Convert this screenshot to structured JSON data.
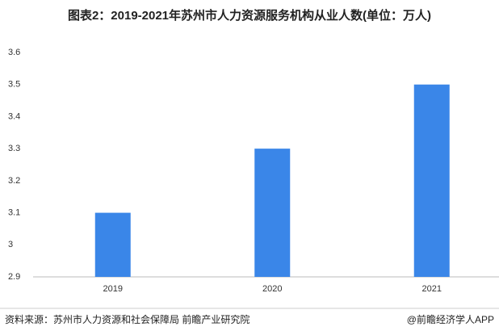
{
  "chart_data": {
    "type": "bar",
    "title": "图表2：2019-2021年苏州市人力资源服务机构从业人数(单位：万人)",
    "categories": [
      "2019",
      "2020",
      "2021"
    ],
    "values": [
      3.1,
      3.3,
      3.5
    ],
    "color": "#3a86e8",
    "ylim": [
      2.9,
      3.6
    ],
    "yticks": [
      2.9,
      3,
      3.1,
      3.2,
      3.3,
      3.4,
      3.5,
      3.6
    ],
    "grid": false,
    "source": "资料来源：苏州市人力资源和社会保障局 前瞻产业研究院",
    "credit": "@前瞻经济学人APP"
  }
}
